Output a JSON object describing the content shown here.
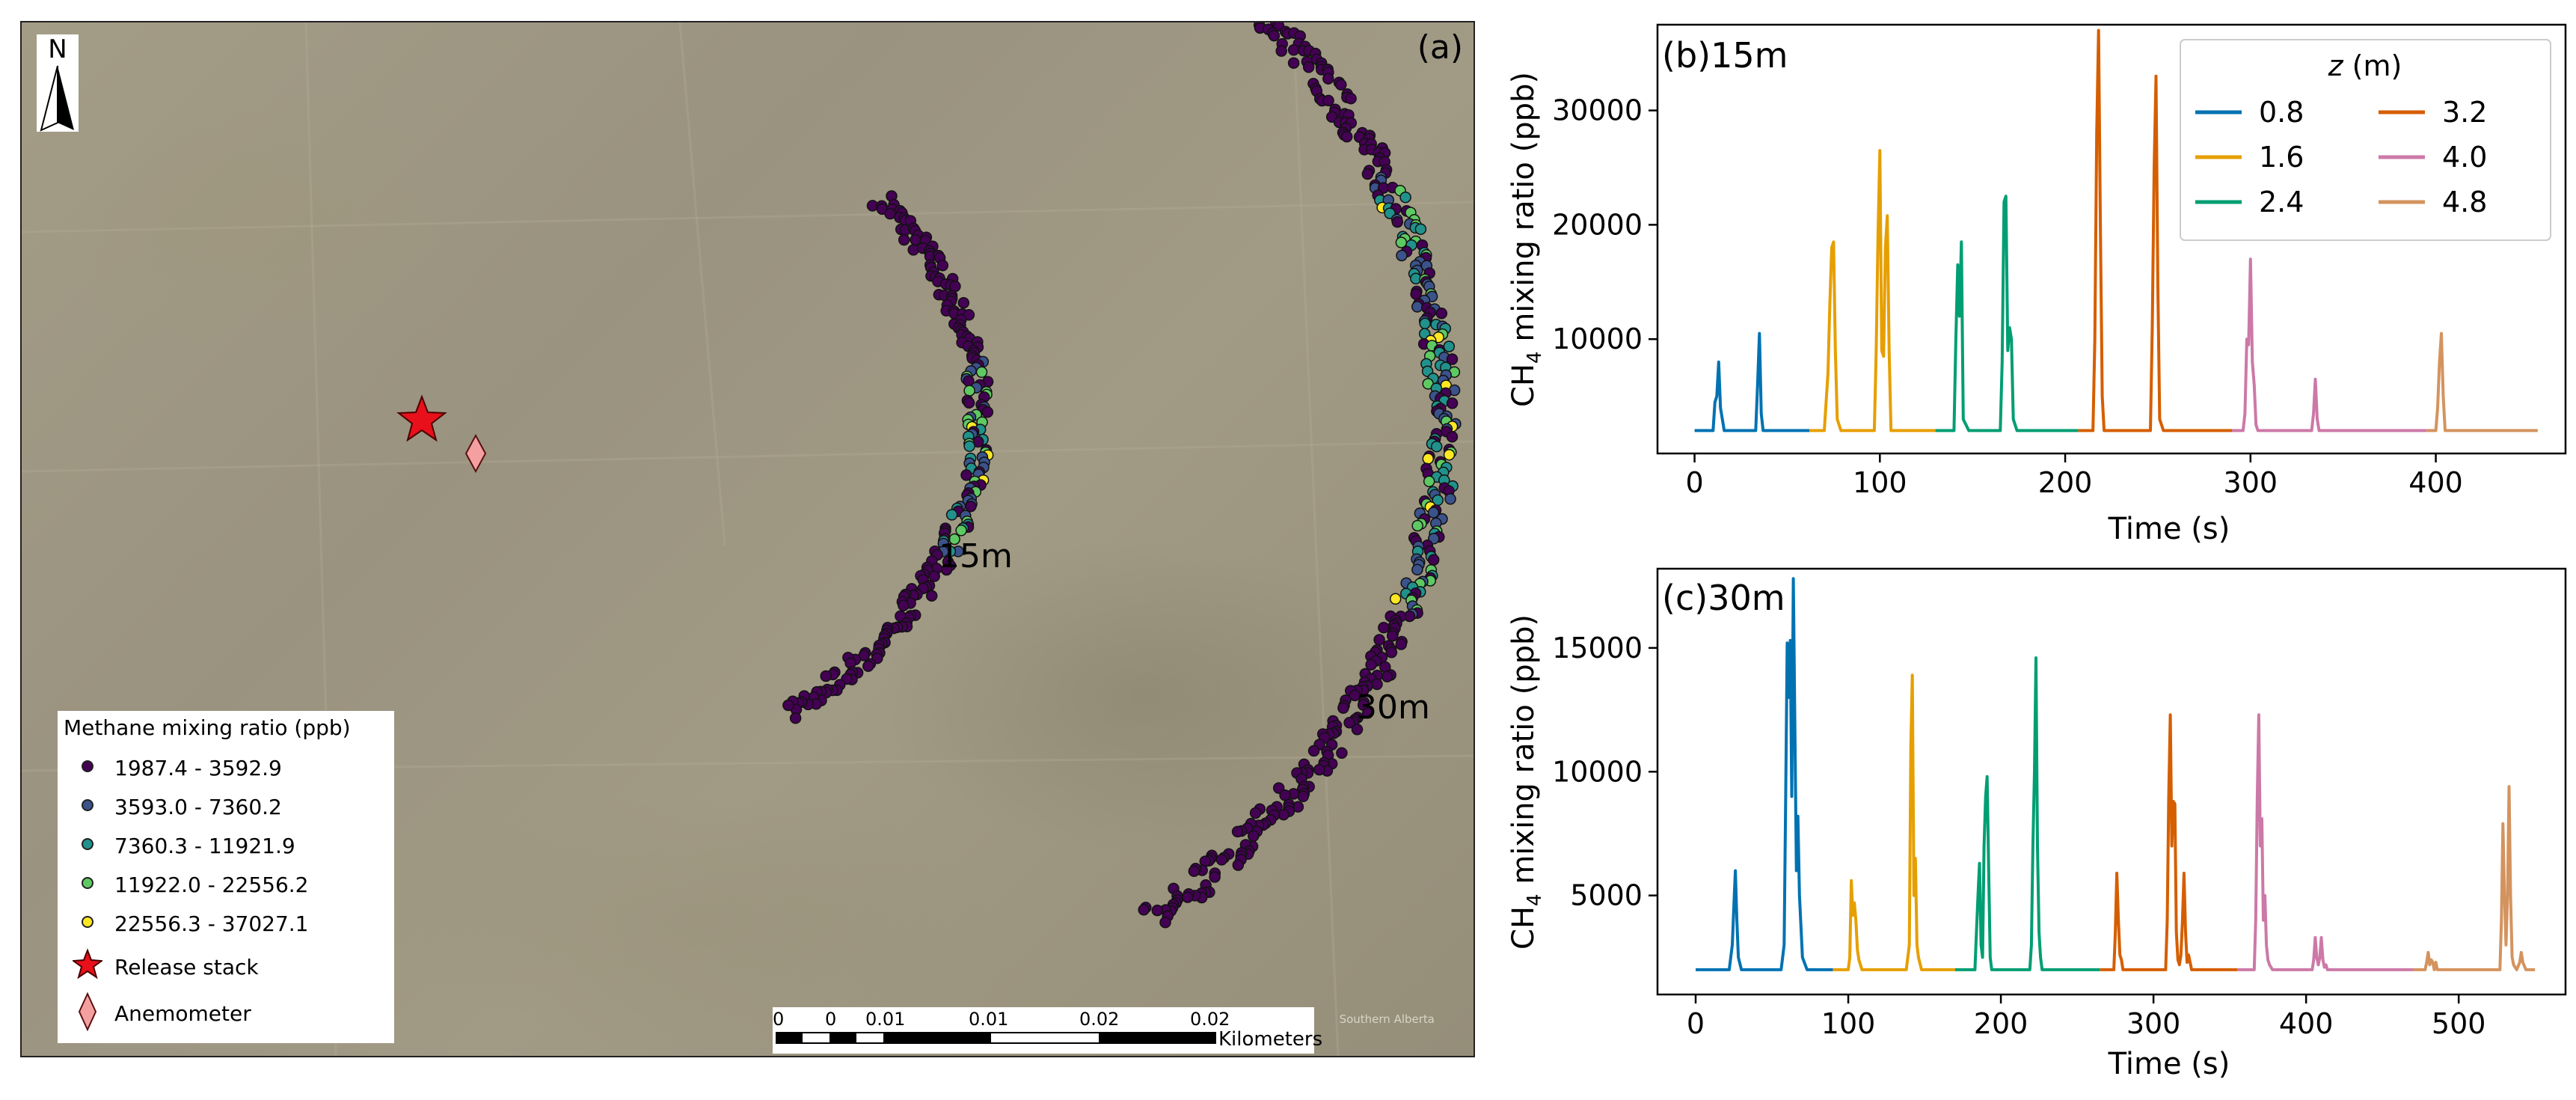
{
  "panel_a": {
    "label": "(a)",
    "north_label": "N",
    "ring_15_label": "15m",
    "ring_30_label": "30m",
    "legend": {
      "title": "Methane mixing ratio (ppb)",
      "classes": [
        {
          "range": "1987.4 - 3592.9",
          "color": "#440154"
        },
        {
          "range": "3593.0 - 7360.2",
          "color": "#3b528b"
        },
        {
          "range": "7360.3 - 11921.9",
          "color": "#21918c"
        },
        {
          "range": "11922.0 - 22556.2",
          "color": "#5ec962"
        },
        {
          "range": "22556.3 - 37027.1",
          "color": "#fde725"
        }
      ],
      "release_label": "Release stack",
      "release_color": "#e8101a",
      "anemometer_label": "Anemometer",
      "anemometer_color": "#f4a0a0"
    },
    "scale_bar": {
      "ticks": [
        "0",
        "0",
        "0.01",
        "0.01",
        "0.02",
        "0.02"
      ],
      "units": "Kilometers"
    },
    "attribution": "Southern Alberta"
  },
  "chart_data": [
    {
      "type": "line",
      "label": "(b)",
      "title": "15m",
      "xlabel": "Time (s)",
      "ylabel": "CH4 mixing ratio (ppb)",
      "xlim": [
        -20,
        470
      ],
      "ylim": [
        0,
        37500
      ],
      "xticks": [
        0,
        100,
        200,
        300,
        400
      ],
      "yticks": [
        10000,
        20000,
        30000
      ],
      "legend_title": "z (m)",
      "legend_position": "upper right",
      "baseline": 2000,
      "series": [
        {
          "name": "0.8",
          "color": "#0072b2",
          "x": [
            0,
            10,
            11,
            12,
            13,
            14,
            16,
            18,
            33,
            34,
            35,
            36,
            37,
            40,
            62
          ],
          "y": [
            2000,
            2000,
            4500,
            5000,
            8000,
            4000,
            2000,
            2000,
            2000,
            6000,
            10500,
            3500,
            2000,
            2000,
            2000
          ]
        },
        {
          "name": "1.6",
          "color": "#e69f00",
          "x": [
            62,
            70,
            72,
            73,
            74,
            75,
            76,
            77,
            79,
            97,
            98,
            99,
            100,
            101,
            102,
            103,
            104,
            105,
            106,
            108,
            130
          ],
          "y": [
            2000,
            2000,
            7000,
            13000,
            18000,
            18500,
            9000,
            3000,
            2000,
            2000,
            9000,
            19000,
            26500,
            9000,
            8500,
            18000,
            20800,
            9000,
            2000,
            2000,
            2000
          ]
        },
        {
          "name": "2.4",
          "color": "#009e73",
          "x": [
            130,
            140,
            141,
            142,
            143,
            144,
            145,
            148,
            165,
            166,
            167,
            168,
            169,
            170,
            171,
            172,
            174,
            207
          ],
          "y": [
            2000,
            2000,
            10000,
            16500,
            12000,
            18500,
            3000,
            2000,
            2000,
            8000,
            22000,
            22500,
            9000,
            11000,
            10000,
            3000,
            2000,
            2000
          ]
        },
        {
          "name": "3.2",
          "color": "#d55e00",
          "x": [
            207,
            215,
            216,
            217,
            218,
            219,
            220,
            221,
            223,
            246,
            247,
            248,
            249,
            250,
            251,
            253,
            290
          ],
          "y": [
            2000,
            2000,
            10000,
            28000,
            37000,
            20000,
            5000,
            2000,
            2000,
            2000,
            11000,
            25000,
            33000,
            15000,
            3000,
            2000,
            2000
          ]
        },
        {
          "name": "4.0",
          "color": "#cc79a7",
          "x": [
            290,
            296,
            297,
            298,
            299,
            300,
            301,
            302,
            303,
            304,
            306,
            333,
            334,
            335,
            336,
            337,
            339,
            395
          ],
          "y": [
            2000,
            2000,
            3500,
            10000,
            9500,
            17000,
            8000,
            6000,
            2500,
            2000,
            2000,
            2000,
            3500,
            6500,
            3000,
            2000,
            2000,
            2000
          ]
        },
        {
          "name": "4.8",
          "color": "#d4935e",
          "x": [
            395,
            400,
            401,
            402,
            403,
            404,
            405,
            407,
            455
          ],
          "y": [
            2000,
            2000,
            4000,
            8000,
            10500,
            5000,
            2000,
            2000,
            2000
          ]
        }
      ]
    },
    {
      "type": "line",
      "label": "(c)",
      "title": "30m",
      "xlabel": "Time (s)",
      "ylabel": "CH4 mixing ratio (ppb)",
      "xlim": [
        -25,
        570
      ],
      "ylim": [
        1000,
        18200
      ],
      "xticks": [
        0,
        100,
        200,
        300,
        400,
        500
      ],
      "yticks": [
        5000,
        10000,
        15000
      ],
      "baseline": 2000,
      "series": [
        {
          "name": "0.8",
          "color": "#0072b2",
          "x": [
            0,
            22,
            24,
            25,
            26,
            27,
            28,
            30,
            56,
            58,
            59,
            60,
            61,
            62,
            63,
            64,
            65,
            66,
            67,
            68,
            70,
            73,
            90
          ],
          "y": [
            2000,
            2000,
            3000,
            4500,
            6000,
            4000,
            2500,
            2000,
            2000,
            3000,
            9000,
            15200,
            13000,
            15300,
            9000,
            17800,
            12000,
            6000,
            8200,
            5000,
            2500,
            2000,
            2000
          ]
        },
        {
          "name": "1.6",
          "color": "#e69f00",
          "x": [
            90,
            100,
            101,
            102,
            103,
            104,
            105,
            106,
            107,
            109,
            138,
            140,
            141,
            142,
            143,
            144,
            145,
            146,
            148,
            170
          ],
          "y": [
            2000,
            2000,
            2500,
            5600,
            4200,
            4700,
            4000,
            2800,
            2400,
            2000,
            2000,
            3000,
            11000,
            13900,
            5000,
            6500,
            3000,
            2500,
            2000,
            2000
          ]
        },
        {
          "name": "2.4",
          "color": "#009e73",
          "x": [
            170,
            183,
            184,
            185,
            186,
            187,
            188,
            189,
            190,
            191,
            192,
            193,
            194,
            219,
            220,
            221,
            222,
            223,
            224,
            225,
            226,
            227,
            265
          ],
          "y": [
            2000,
            2000,
            3500,
            5000,
            6300,
            3000,
            2500,
            7000,
            9000,
            9800,
            6000,
            2500,
            2000,
            2000,
            3000,
            7000,
            10000,
            14600,
            7000,
            3500,
            2500,
            2000,
            2000
          ]
        },
        {
          "name": "3.2",
          "color": "#d55e00",
          "x": [
            265,
            274,
            275,
            276,
            277,
            278,
            279,
            280,
            308,
            309,
            310,
            311,
            312,
            313,
            314,
            315,
            316,
            317,
            318,
            319,
            320,
            321,
            322,
            323,
            325,
            355
          ],
          "y": [
            2000,
            2000,
            3500,
            5900,
            4000,
            2600,
            2400,
            2000,
            2000,
            4000,
            9000,
            12300,
            7000,
            8800,
            8700,
            3500,
            2400,
            2200,
            2600,
            4000,
            5900,
            3500,
            2300,
            2600,
            2000,
            2000
          ]
        },
        {
          "name": "4.0",
          "color": "#cc79a7",
          "x": [
            355,
            366,
            367,
            368,
            369,
            370,
            371,
            372,
            373,
            374,
            375,
            376,
            378,
            404,
            405,
            406,
            407,
            408,
            409,
            410,
            411,
            412,
            413,
            414,
            470
          ],
          "y": [
            2000,
            2000,
            4000,
            9000,
            12300,
            7000,
            8100,
            4000,
            5000,
            3000,
            2400,
            2200,
            2000,
            2000,
            2400,
            3300,
            2500,
            2200,
            2500,
            3300,
            2400,
            2100,
            2200,
            2000,
            2000
          ]
        },
        {
          "name": "4.8",
          "color": "#d4935e",
          "x": [
            470,
            478,
            479,
            480,
            481,
            482,
            483,
            484,
            485,
            486,
            527,
            528,
            529,
            530,
            531,
            532,
            533,
            534,
            535,
            536,
            538,
            540,
            541,
            542,
            544,
            550
          ],
          "y": [
            2000,
            2000,
            2300,
            2700,
            2200,
            2400,
            2300,
            2000,
            2300,
            2000,
            2000,
            4000,
            7900,
            5000,
            3000,
            5000,
            9400,
            5000,
            2500,
            2200,
            2000,
            2300,
            2700,
            2300,
            2000,
            2000
          ]
        }
      ]
    }
  ]
}
